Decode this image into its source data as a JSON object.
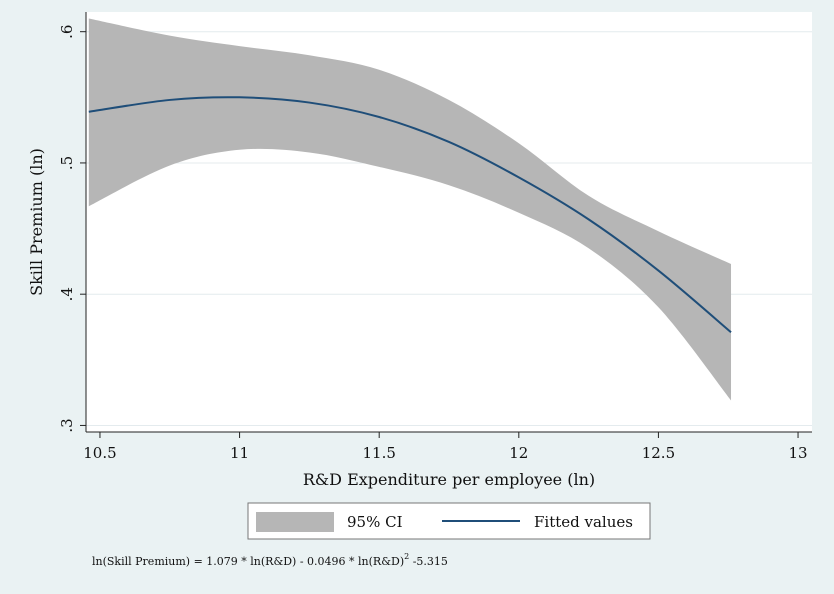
{
  "chart_data": {
    "type": "line",
    "xlabel": "R&D Expenditure per employee (ln)",
    "ylabel": "Skill Premium (ln)",
    "xlim": [
      10.45,
      13.05
    ],
    "ylim": [
      0.295,
      0.615
    ],
    "x_ticks": [
      10.5,
      11,
      11.5,
      12,
      12.5,
      13
    ],
    "x_tick_labels": [
      "10.5",
      "11",
      "11.5",
      "12",
      "12.5",
      "13"
    ],
    "y_ticks": [
      0.3,
      0.4,
      0.5,
      0.6
    ],
    "y_tick_labels": [
      ".3",
      ".4",
      ".5",
      ".6"
    ],
    "grid": true,
    "legend_position": "bottom",
    "colors": {
      "background": "#eaf2f3",
      "plot_area": "#ffffff",
      "ci_band": "#b6b6b6",
      "fitted_line": "#1f4e79",
      "grid": "#e4ebee"
    },
    "series": [
      {
        "name": "95% CI",
        "kind": "band",
        "x": [
          10.46,
          10.75,
          11.0,
          11.25,
          11.5,
          11.75,
          12.0,
          12.25,
          12.5,
          12.76
        ],
        "upper": [
          0.61,
          0.597,
          0.589,
          0.582,
          0.571,
          0.548,
          0.515,
          0.475,
          0.448,
          0.423
        ],
        "lower": [
          0.467,
          0.498,
          0.51,
          0.508,
          0.497,
          0.483,
          0.462,
          0.435,
          0.39,
          0.319
        ]
      },
      {
        "name": "Fitted values",
        "kind": "line",
        "x": [
          10.46,
          10.75,
          11.0,
          11.25,
          11.5,
          11.75,
          12.0,
          12.25,
          12.5,
          12.76
        ],
        "y": [
          0.539,
          0.548,
          0.55,
          0.546,
          0.535,
          0.516,
          0.489,
          0.457,
          0.418,
          0.371
        ]
      }
    ]
  },
  "legend": {
    "ci_label": "95% CI",
    "line_label": "Fitted values"
  },
  "formula": {
    "part1": "ln(Skill Premium) = 1.079 * ln(R&D) - 0.0496 * ln(R&D)",
    "sup": "2",
    "part2": " -5.315"
  }
}
